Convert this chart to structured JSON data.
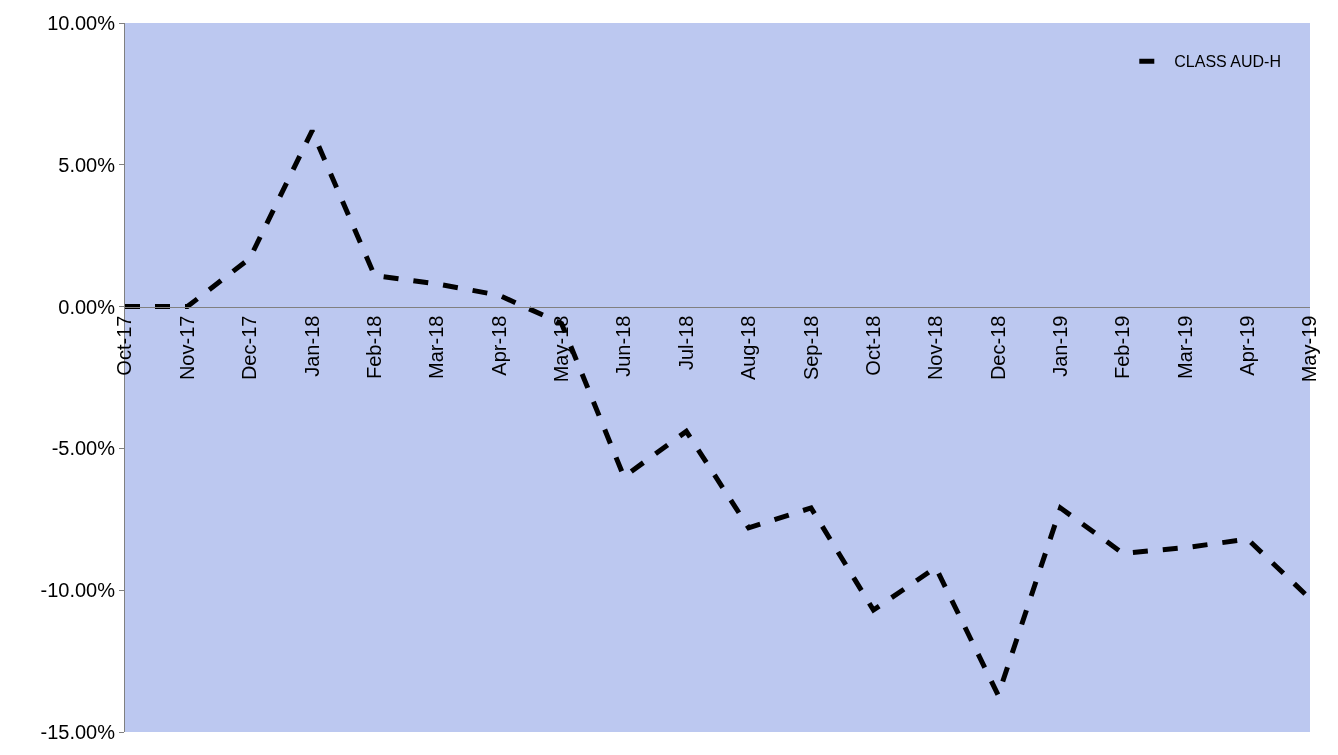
{
  "chart_data": {
    "type": "line",
    "categories": [
      "Oct-17",
      "Nov-17",
      "Dec-17",
      "Jan-18",
      "Feb-18",
      "Mar-18",
      "Apr-18",
      "May-18",
      "Jun-18",
      "Jul-18",
      "Aug-18",
      "Sep-18",
      "Oct-18",
      "Nov-18",
      "Dec-18",
      "Jan-19",
      "Feb-19",
      "Mar-19",
      "Apr-19",
      "May-19"
    ],
    "series": [
      {
        "name": "CLASS AUD-H",
        "color": "#000000",
        "values": [
          0,
          0,
          1.7,
          6.2,
          1.1,
          0.8,
          0.4,
          -0.6,
          -6.0,
          -4.4,
          -7.8,
          -7.1,
          -10.7,
          -9.2,
          -13.7,
          -7.1,
          -8.7,
          -8.5,
          -8.2,
          -10.3
        ]
      }
    ],
    "ylim": [
      -15,
      10
    ],
    "yticks": [
      {
        "value": -15,
        "label": "-15.00%"
      },
      {
        "value": -10,
        "label": "-10.00%"
      },
      {
        "value": -5,
        "label": "-5.00%"
      },
      {
        "value": 0,
        "label": "0.00%"
      },
      {
        "value": 5,
        "label": "5.00%"
      },
      {
        "value": 10,
        "label": "10.00%"
      }
    ],
    "grid": false,
    "legend": "top right",
    "marker": "none",
    "line_style": "dashed"
  }
}
